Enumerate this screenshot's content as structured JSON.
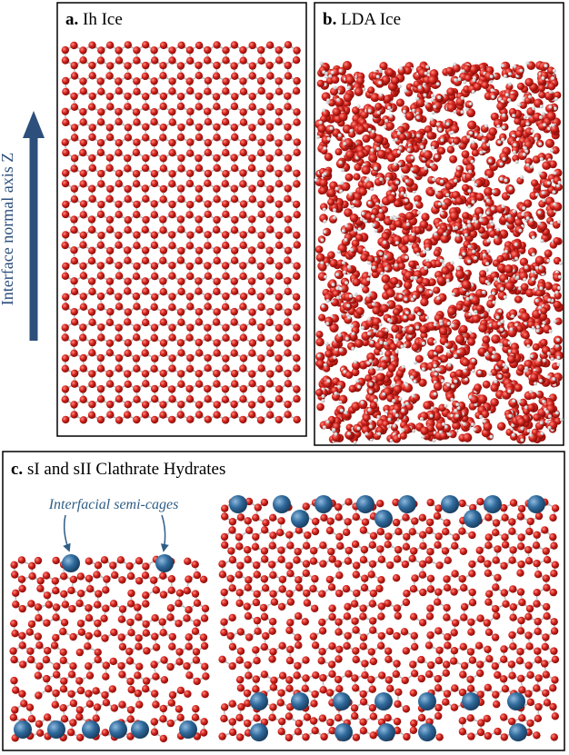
{
  "axis_label": "Interface normal axis Z",
  "panels": [
    {
      "label": "a.",
      "title": "Ih Ice"
    },
    {
      "label": "b.",
      "title": "LDA Ice"
    },
    {
      "label": "c.",
      "title": "sI and sII Clathrate Hydrates",
      "annotation": "Interfacial semi-cages"
    }
  ]
}
